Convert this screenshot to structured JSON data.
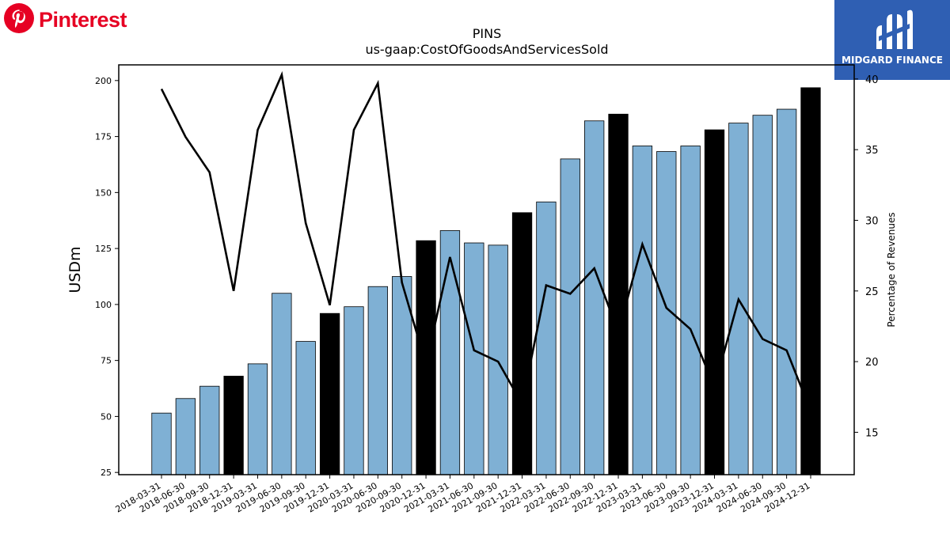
{
  "brand": {
    "name": "Pinterest",
    "icon": "pinterest-logo-icon",
    "color": "#e60023"
  },
  "badge": {
    "name": "MIDGARD FINANCE",
    "icon": "midgard-logo-icon",
    "color": "#2f5fb3"
  },
  "chart_data": {
    "type": "bar",
    "title": "PINS",
    "subtitle": "us-gaap:CostOfGoodsAndServicesSold",
    "ylabel": "USDm",
    "y2label": "Percentage of Revenues",
    "ylim": [
      24,
      207
    ],
    "y2lim": [
      12,
      41
    ],
    "yticks": [
      25,
      50,
      75,
      100,
      125,
      150,
      175,
      200
    ],
    "y2ticks": [
      15,
      20,
      25,
      30,
      35,
      40
    ],
    "categories": [
      "2018-03-31",
      "2018-06-30",
      "2018-09-30",
      "2018-12-31",
      "2019-03-31",
      "2019-06-30",
      "2019-09-30",
      "2019-12-31",
      "2020-03-31",
      "2020-06-30",
      "2020-09-30",
      "2020-12-31",
      "2021-03-31",
      "2021-06-30",
      "2021-09-30",
      "2021-12-31",
      "2022-03-31",
      "2022-06-30",
      "2022-09-30",
      "2022-12-31",
      "2023-03-31",
      "2023-06-30",
      "2023-09-30",
      "2023-12-31",
      "2024-03-31",
      "2024-06-30",
      "2024-09-30",
      "2024-12-31"
    ],
    "series": [
      {
        "type": "bar",
        "axis": "left",
        "values": [
          51.5,
          58,
          63.5,
          68,
          73.5,
          105,
          83.5,
          96,
          99,
          108,
          112.5,
          128.5,
          133,
          127.5,
          126.5,
          141,
          145.8,
          165,
          182,
          185,
          170.8,
          168.3,
          170.8,
          178,
          181,
          184.5,
          187.2,
          196.8
        ],
        "highlight": [
          false,
          false,
          false,
          true,
          false,
          false,
          false,
          true,
          false,
          false,
          false,
          true,
          false,
          false,
          false,
          true,
          false,
          false,
          false,
          true,
          false,
          false,
          false,
          true,
          false,
          false,
          false,
          true
        ]
      },
      {
        "type": "line",
        "axis": "right",
        "values": [
          39.3,
          35.9,
          33.4,
          25,
          36.4,
          40.3,
          29.8,
          24,
          36.4,
          39.7,
          25.6,
          19.8,
          27.4,
          20.8,
          20,
          17,
          25.4,
          24.8,
          26.6,
          22.1,
          28.3,
          23.8,
          22.3,
          18.2,
          24.4,
          21.6,
          20.8,
          16.5
        ]
      }
    ],
    "colors": {
      "bar": "#7fb0d4",
      "bar_highlight": "#000000",
      "line": "#000000"
    },
    "grid": false
  }
}
